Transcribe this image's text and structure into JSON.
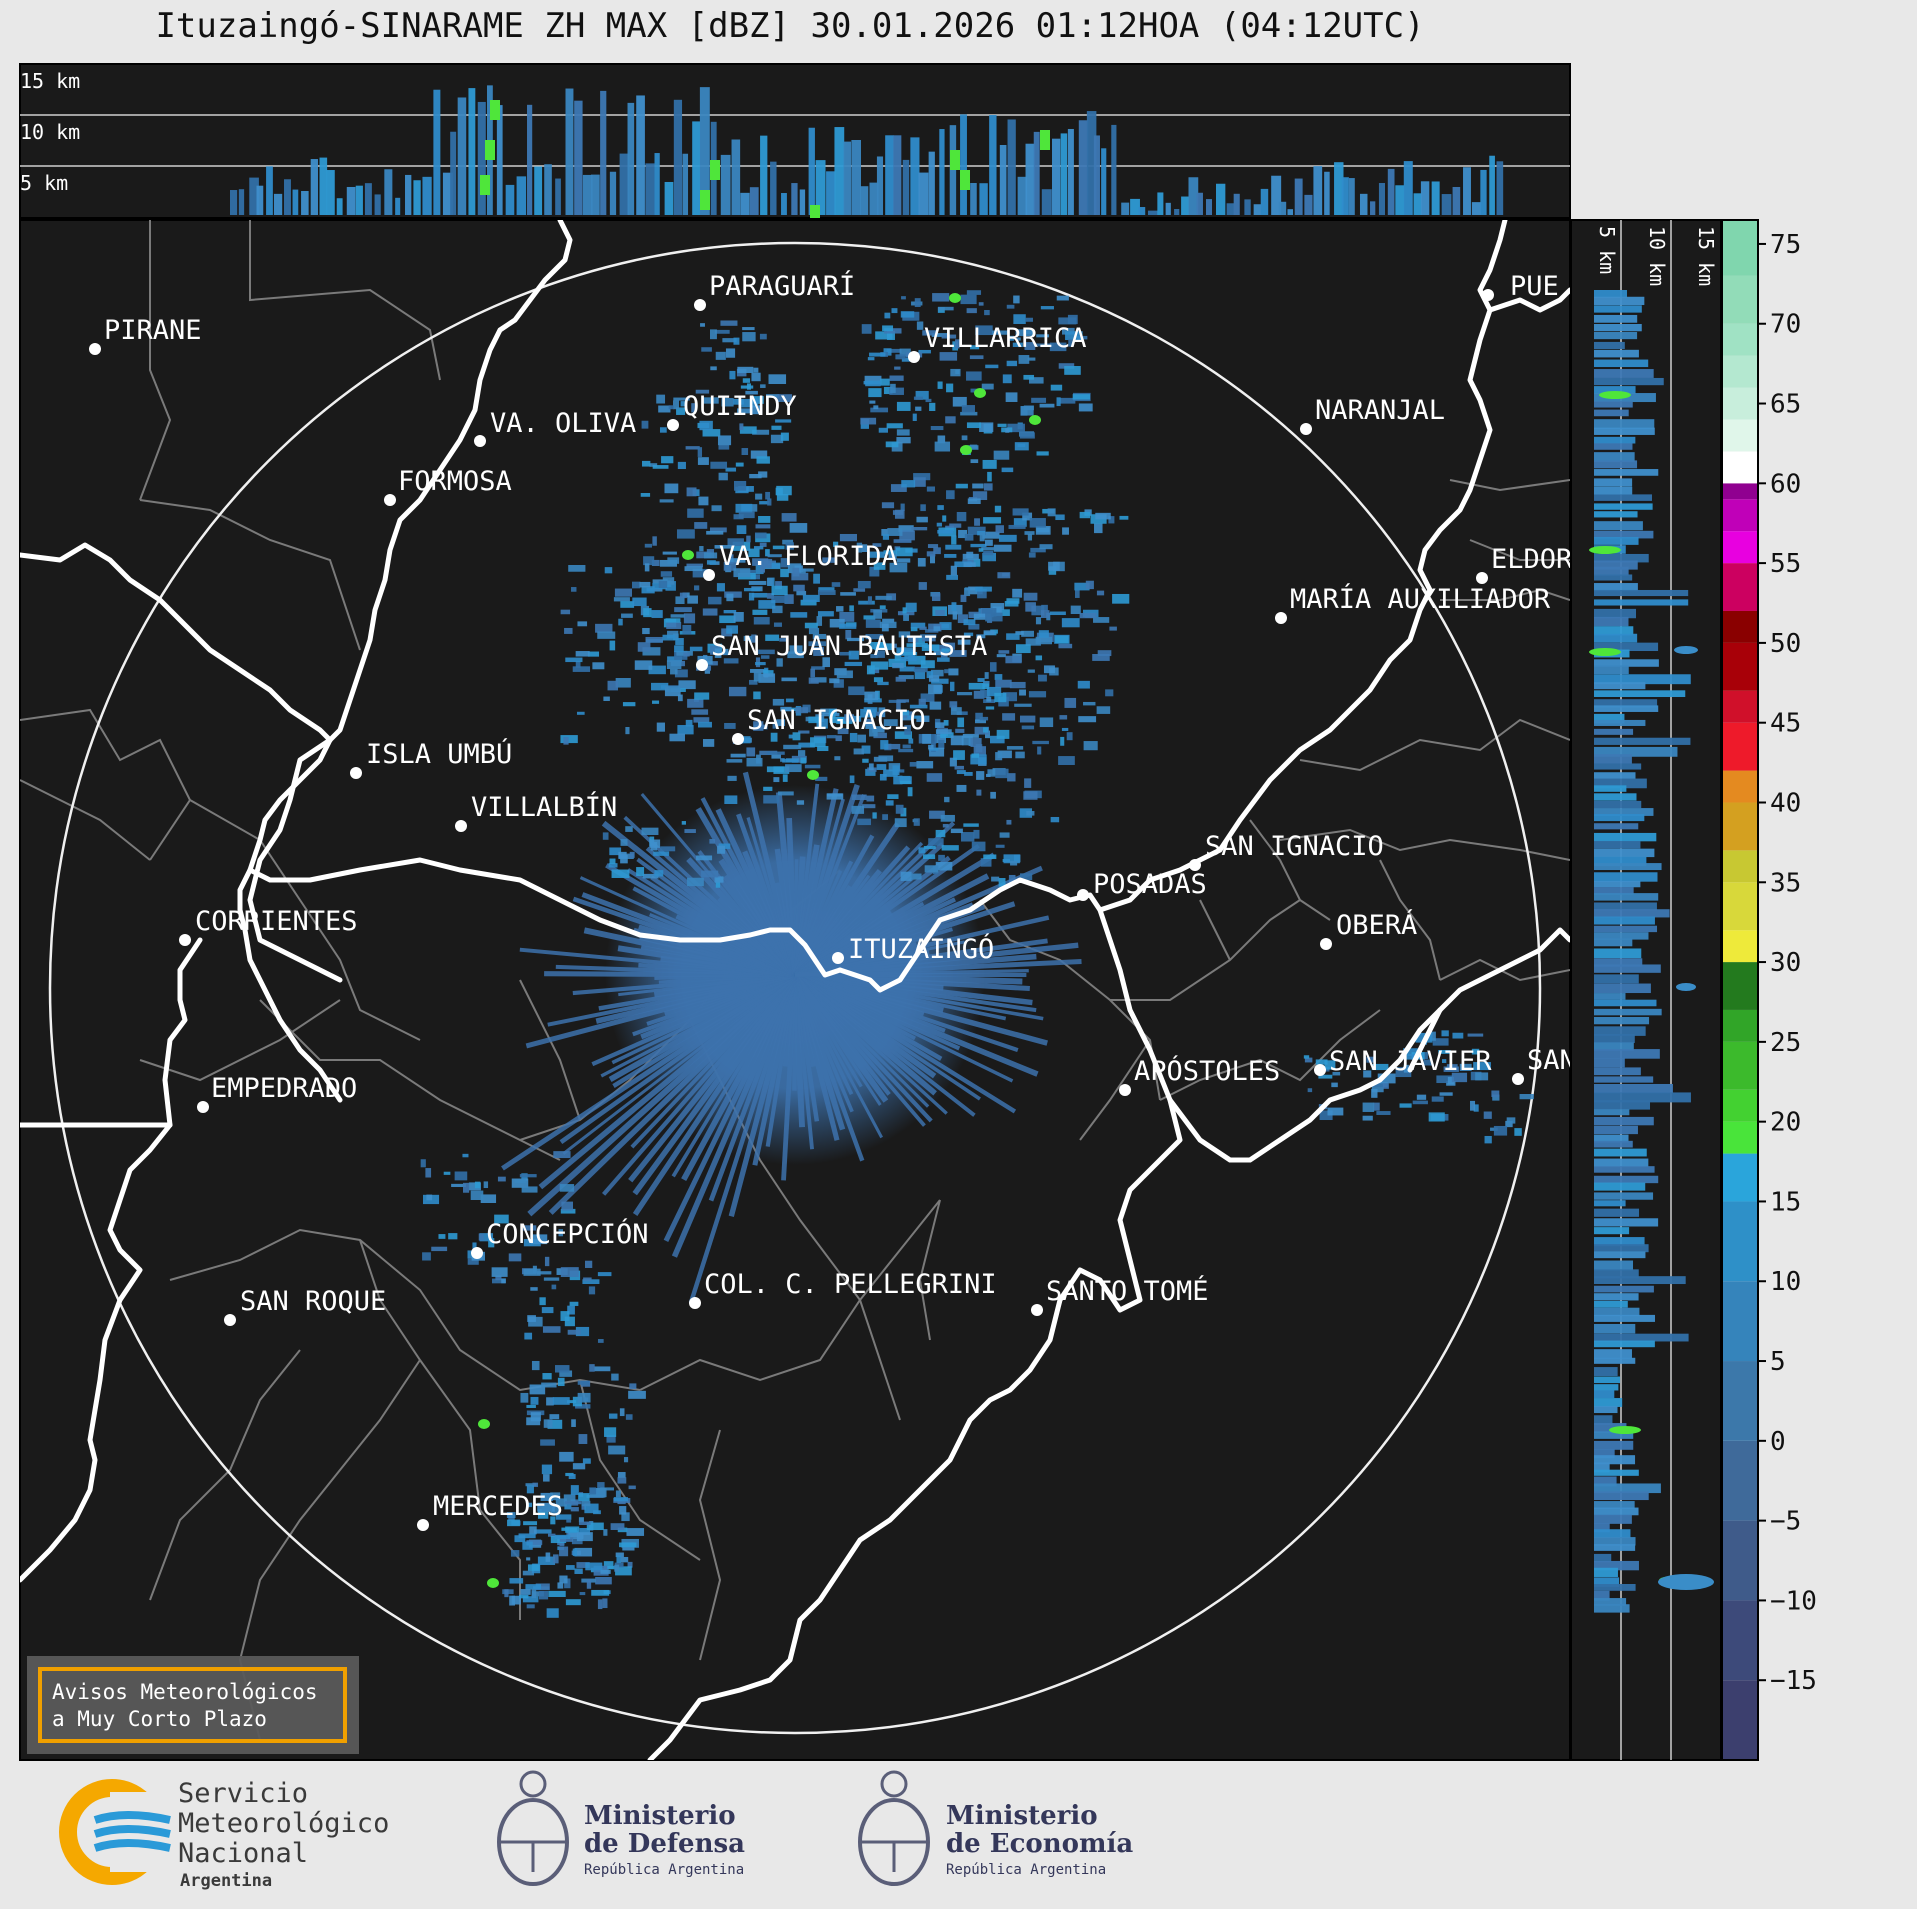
{
  "title": "Ituzaingó-SINARAME ZH MAX [dBZ] 30.01.2026 01:12HOA (04:12UTC)",
  "height_labels_top": [
    "15 km",
    "10 km",
    "5 km"
  ],
  "height_labels_side": [
    "5 km",
    "10 km",
    "15 km"
  ],
  "colorbar": {
    "ticks": [
      "75",
      "70",
      "65",
      "60",
      "55",
      "50",
      "45",
      "40",
      "35",
      "30",
      "25",
      "20",
      "15",
      "10",
      "5",
      "0",
      "−5",
      "−10",
      "−15"
    ],
    "value_min": -20,
    "value_max": 76.5
  },
  "cities": [
    {
      "name": "PARAGUARÍ",
      "dx": 0,
      "dy": 0
    },
    {
      "name": "VILLARRICA"
    },
    {
      "name": "PIRANE"
    },
    {
      "name": "QUIINDY"
    },
    {
      "name": "VA. OLIVA"
    },
    {
      "name": "NARANJAL"
    },
    {
      "name": "FORMOSA"
    },
    {
      "name": "VA. FLORIDA"
    },
    {
      "name": "ELDOR"
    },
    {
      "name": "MARÍA AUXILIADOR"
    },
    {
      "name": "SAN JUAN BAUTISTA"
    },
    {
      "name": "SAN IGNACIO"
    },
    {
      "name": "ISLA UMBÚ"
    },
    {
      "name": "VILLALBÍN"
    },
    {
      "name": "SAN IGNACIO"
    },
    {
      "name": "POSADAS"
    },
    {
      "name": "CORRIENTES"
    },
    {
      "name": "ITUZAINGÓ"
    },
    {
      "name": "OBERÁ"
    },
    {
      "name": "EMPEDRADO"
    },
    {
      "name": "APÓSTOLES"
    },
    {
      "name": "SAN JAVIER"
    },
    {
      "name": "SAN"
    },
    {
      "name": "CONCEPCIÓN"
    },
    {
      "name": "COL. C. PELLEGRINI"
    },
    {
      "name": "SANTO TOMÉ"
    },
    {
      "name": "SAN ROQUE"
    },
    {
      "name": "MERCEDES"
    },
    {
      "name": "PUE"
    }
  ],
  "warning_box": {
    "line1": "Avisos Meteorológicos",
    "line2": "a Muy Corto Plazo"
  },
  "logos": {
    "smn": {
      "line1": "Servicio",
      "line2": "Meteorológico",
      "line3": "Nacional",
      "line4": "Argentina"
    },
    "defensa": {
      "line1": "Ministerio",
      "line2": "de Defensa",
      "line3": "República Argentina"
    },
    "economia": {
      "line1": "Ministerio",
      "line2": "de Economía",
      "line3": "República Argentina"
    }
  },
  "colors": {
    "map_bg": "#1a1a1a",
    "base_echo": "#3d78b4",
    "echo_light": "#2e9ad4",
    "echo_green": "#4fe63a",
    "border_white": "#ffffff",
    "border_gray": "#808080",
    "accent_orange": "#f0a000"
  }
}
